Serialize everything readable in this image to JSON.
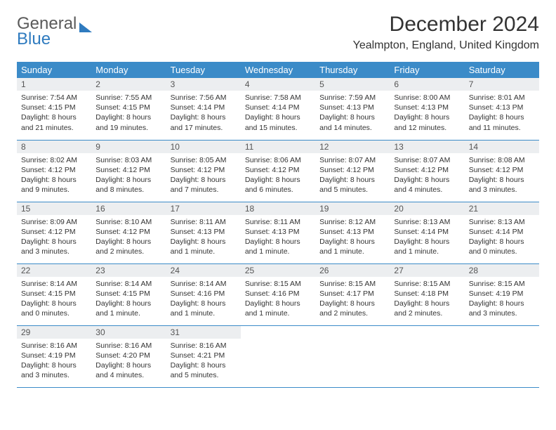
{
  "logo": {
    "line1": "General",
    "line2": "Blue"
  },
  "title": "December 2024",
  "location": "Yealmpton, England, United Kingdom",
  "colors": {
    "header_bg": "#3b8bc8",
    "header_text": "#ffffff",
    "daynum_bg": "#eceef0",
    "row_border": "#3b8bc8",
    "logo_blue": "#2f7bbf",
    "logo_gray": "#5a5a5a"
  },
  "weekdays": [
    "Sunday",
    "Monday",
    "Tuesday",
    "Wednesday",
    "Thursday",
    "Friday",
    "Saturday"
  ],
  "weeks": [
    [
      {
        "n": "1",
        "sr": "Sunrise: 7:54 AM",
        "ss": "Sunset: 4:15 PM",
        "d1": "Daylight: 8 hours",
        "d2": "and 21 minutes."
      },
      {
        "n": "2",
        "sr": "Sunrise: 7:55 AM",
        "ss": "Sunset: 4:15 PM",
        "d1": "Daylight: 8 hours",
        "d2": "and 19 minutes."
      },
      {
        "n": "3",
        "sr": "Sunrise: 7:56 AM",
        "ss": "Sunset: 4:14 PM",
        "d1": "Daylight: 8 hours",
        "d2": "and 17 minutes."
      },
      {
        "n": "4",
        "sr": "Sunrise: 7:58 AM",
        "ss": "Sunset: 4:14 PM",
        "d1": "Daylight: 8 hours",
        "d2": "and 15 minutes."
      },
      {
        "n": "5",
        "sr": "Sunrise: 7:59 AM",
        "ss": "Sunset: 4:13 PM",
        "d1": "Daylight: 8 hours",
        "d2": "and 14 minutes."
      },
      {
        "n": "6",
        "sr": "Sunrise: 8:00 AM",
        "ss": "Sunset: 4:13 PM",
        "d1": "Daylight: 8 hours",
        "d2": "and 12 minutes."
      },
      {
        "n": "7",
        "sr": "Sunrise: 8:01 AM",
        "ss": "Sunset: 4:13 PM",
        "d1": "Daylight: 8 hours",
        "d2": "and 11 minutes."
      }
    ],
    [
      {
        "n": "8",
        "sr": "Sunrise: 8:02 AM",
        "ss": "Sunset: 4:12 PM",
        "d1": "Daylight: 8 hours",
        "d2": "and 9 minutes."
      },
      {
        "n": "9",
        "sr": "Sunrise: 8:03 AM",
        "ss": "Sunset: 4:12 PM",
        "d1": "Daylight: 8 hours",
        "d2": "and 8 minutes."
      },
      {
        "n": "10",
        "sr": "Sunrise: 8:05 AM",
        "ss": "Sunset: 4:12 PM",
        "d1": "Daylight: 8 hours",
        "d2": "and 7 minutes."
      },
      {
        "n": "11",
        "sr": "Sunrise: 8:06 AM",
        "ss": "Sunset: 4:12 PM",
        "d1": "Daylight: 8 hours",
        "d2": "and 6 minutes."
      },
      {
        "n": "12",
        "sr": "Sunrise: 8:07 AM",
        "ss": "Sunset: 4:12 PM",
        "d1": "Daylight: 8 hours",
        "d2": "and 5 minutes."
      },
      {
        "n": "13",
        "sr": "Sunrise: 8:07 AM",
        "ss": "Sunset: 4:12 PM",
        "d1": "Daylight: 8 hours",
        "d2": "and 4 minutes."
      },
      {
        "n": "14",
        "sr": "Sunrise: 8:08 AM",
        "ss": "Sunset: 4:12 PM",
        "d1": "Daylight: 8 hours",
        "d2": "and 3 minutes."
      }
    ],
    [
      {
        "n": "15",
        "sr": "Sunrise: 8:09 AM",
        "ss": "Sunset: 4:12 PM",
        "d1": "Daylight: 8 hours",
        "d2": "and 3 minutes."
      },
      {
        "n": "16",
        "sr": "Sunrise: 8:10 AM",
        "ss": "Sunset: 4:12 PM",
        "d1": "Daylight: 8 hours",
        "d2": "and 2 minutes."
      },
      {
        "n": "17",
        "sr": "Sunrise: 8:11 AM",
        "ss": "Sunset: 4:13 PM",
        "d1": "Daylight: 8 hours",
        "d2": "and 1 minute."
      },
      {
        "n": "18",
        "sr": "Sunrise: 8:11 AM",
        "ss": "Sunset: 4:13 PM",
        "d1": "Daylight: 8 hours",
        "d2": "and 1 minute."
      },
      {
        "n": "19",
        "sr": "Sunrise: 8:12 AM",
        "ss": "Sunset: 4:13 PM",
        "d1": "Daylight: 8 hours",
        "d2": "and 1 minute."
      },
      {
        "n": "20",
        "sr": "Sunrise: 8:13 AM",
        "ss": "Sunset: 4:14 PM",
        "d1": "Daylight: 8 hours",
        "d2": "and 1 minute."
      },
      {
        "n": "21",
        "sr": "Sunrise: 8:13 AM",
        "ss": "Sunset: 4:14 PM",
        "d1": "Daylight: 8 hours",
        "d2": "and 0 minutes."
      }
    ],
    [
      {
        "n": "22",
        "sr": "Sunrise: 8:14 AM",
        "ss": "Sunset: 4:15 PM",
        "d1": "Daylight: 8 hours",
        "d2": "and 0 minutes."
      },
      {
        "n": "23",
        "sr": "Sunrise: 8:14 AM",
        "ss": "Sunset: 4:15 PM",
        "d1": "Daylight: 8 hours",
        "d2": "and 1 minute."
      },
      {
        "n": "24",
        "sr": "Sunrise: 8:14 AM",
        "ss": "Sunset: 4:16 PM",
        "d1": "Daylight: 8 hours",
        "d2": "and 1 minute."
      },
      {
        "n": "25",
        "sr": "Sunrise: 8:15 AM",
        "ss": "Sunset: 4:16 PM",
        "d1": "Daylight: 8 hours",
        "d2": "and 1 minute."
      },
      {
        "n": "26",
        "sr": "Sunrise: 8:15 AM",
        "ss": "Sunset: 4:17 PM",
        "d1": "Daylight: 8 hours",
        "d2": "and 2 minutes."
      },
      {
        "n": "27",
        "sr": "Sunrise: 8:15 AM",
        "ss": "Sunset: 4:18 PM",
        "d1": "Daylight: 8 hours",
        "d2": "and 2 minutes."
      },
      {
        "n": "28",
        "sr": "Sunrise: 8:15 AM",
        "ss": "Sunset: 4:19 PM",
        "d1": "Daylight: 8 hours",
        "d2": "and 3 minutes."
      }
    ],
    [
      {
        "n": "29",
        "sr": "Sunrise: 8:16 AM",
        "ss": "Sunset: 4:19 PM",
        "d1": "Daylight: 8 hours",
        "d2": "and 3 minutes."
      },
      {
        "n": "30",
        "sr": "Sunrise: 8:16 AM",
        "ss": "Sunset: 4:20 PM",
        "d1": "Daylight: 8 hours",
        "d2": "and 4 minutes."
      },
      {
        "n": "31",
        "sr": "Sunrise: 8:16 AM",
        "ss": "Sunset: 4:21 PM",
        "d1": "Daylight: 8 hours",
        "d2": "and 5 minutes."
      },
      {
        "empty": true
      },
      {
        "empty": true
      },
      {
        "empty": true
      },
      {
        "empty": true
      }
    ]
  ]
}
